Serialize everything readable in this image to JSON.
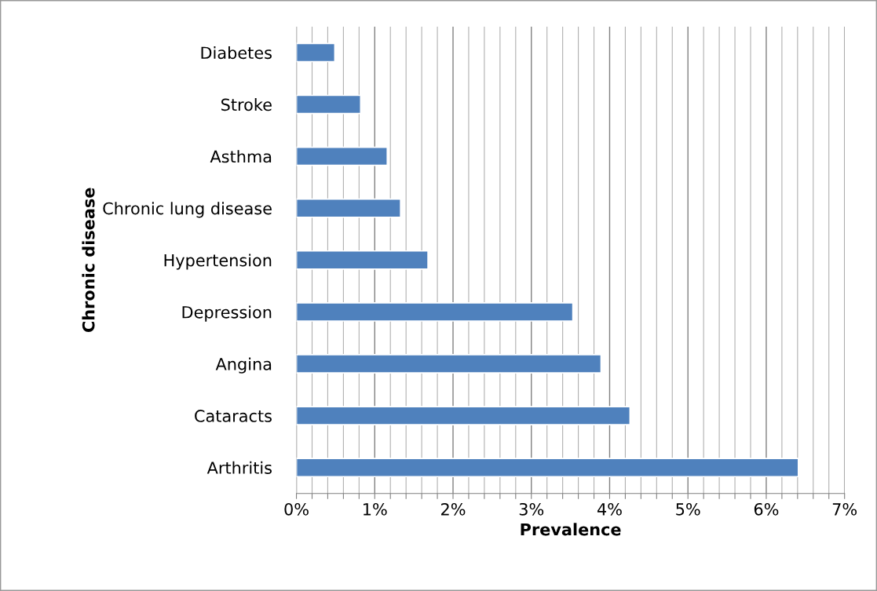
{
  "chart_data": {
    "type": "bar",
    "orientation": "horizontal",
    "xlabel": "Prevalence",
    "ylabel": "Chronic disease",
    "categories": [
      "Diabetes",
      "Stroke",
      "Asthma",
      "Chronic lung disease",
      "Hypertension",
      "Depression",
      "Angina",
      "Cataracts",
      "Arthritis"
    ],
    "values": [
      0.49,
      0.82,
      1.16,
      1.33,
      1.68,
      3.53,
      3.89,
      4.26,
      6.41
    ],
    "color": "#4f81bd",
    "xlim": [
      0,
      7
    ],
    "xticks": [
      {
        "value": 0,
        "label": "0%"
      },
      {
        "value": 0.2,
        "label": null
      },
      {
        "value": 0.4,
        "label": null
      },
      {
        "value": 0.6,
        "label": null
      },
      {
        "value": 0.8,
        "label": null
      },
      {
        "value": 1,
        "label": "1%"
      },
      {
        "value": 1.2,
        "label": null
      },
      {
        "value": 1.4,
        "label": null
      },
      {
        "value": 1.6,
        "label": null
      },
      {
        "value": 1.8,
        "label": null
      },
      {
        "value": 2,
        "label": "2%"
      },
      {
        "value": 2.2,
        "label": null
      },
      {
        "value": 2.4,
        "label": null
      },
      {
        "value": 2.6,
        "label": null
      },
      {
        "value": 2.8,
        "label": null
      },
      {
        "value": 3,
        "label": "3%"
      },
      {
        "value": 3.2,
        "label": null
      },
      {
        "value": 3.4,
        "label": null
      },
      {
        "value": 3.6,
        "label": null
      },
      {
        "value": 3.8,
        "label": null
      },
      {
        "value": 4,
        "label": "4%"
      },
      {
        "value": 4.2,
        "label": null
      },
      {
        "value": 4.4,
        "label": null
      },
      {
        "value": 4.6,
        "label": null
      },
      {
        "value": 4.8,
        "label": null
      },
      {
        "value": 5,
        "label": "5%"
      },
      {
        "value": 5.2,
        "label": null
      },
      {
        "value": 5.4,
        "label": null
      },
      {
        "value": 5.6,
        "label": null
      },
      {
        "value": 5.8,
        "label": null
      },
      {
        "value": 6,
        "label": "6%"
      },
      {
        "value": 6.2,
        "label": null
      },
      {
        "value": 6.4,
        "label": null
      },
      {
        "value": 6.6,
        "label": null
      },
      {
        "value": 6.8,
        "label": null
      },
      {
        "value": 7,
        "label": "7%"
      }
    ],
    "grid": "x"
  }
}
